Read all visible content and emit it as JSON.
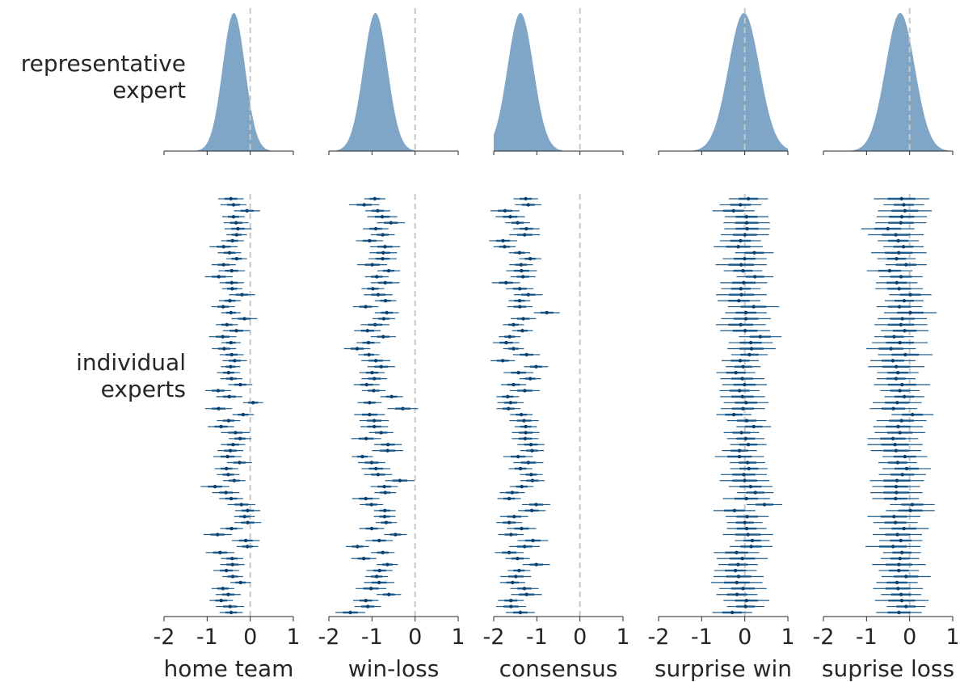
{
  "row_labels": {
    "top": [
      "representative",
      "expert"
    ],
    "bottom": [
      "individual",
      "experts"
    ]
  },
  "colors": {
    "density_fill": "#7fa6c6",
    "interval_line": "#1a5a8c",
    "interval_point": "#0c3f6b",
    "zero_line": "#c8c8c8",
    "axis": "#262626"
  },
  "chart_data": [
    {
      "type": "area",
      "xlabel": "home team",
      "xlim": [
        -2,
        1
      ],
      "xticks": [
        "-2",
        "-1",
        "0",
        "1"
      ],
      "reference_line": 0,
      "density": {
        "mean": -0.38,
        "sd": 0.26,
        "skew": 0.0
      },
      "experts": {
        "count": 70,
        "center": -0.38,
        "spread": 0.22,
        "half_width": 0.28
      }
    },
    {
      "type": "area",
      "xlabel": "win-loss",
      "xlim": [
        -2,
        1
      ],
      "xticks": [
        "-2",
        "-1",
        "0",
        "1"
      ],
      "reference_line": 0,
      "density": {
        "mean": -0.92,
        "sd": 0.28,
        "skew": 0.0
      },
      "experts": {
        "count": 70,
        "center": -0.92,
        "spread": 0.24,
        "half_width": 0.3
      }
    },
    {
      "type": "area",
      "xlabel": "consensus",
      "xlim": [
        -2,
        1
      ],
      "xticks": [
        "-2",
        "-1",
        "0",
        "1"
      ],
      "reference_line": 0,
      "density": {
        "mean": -1.38,
        "sd": 0.3,
        "skew": 0.0
      },
      "experts": {
        "count": 70,
        "center": -1.38,
        "spread": 0.24,
        "half_width": 0.3
      }
    },
    {
      "type": "area",
      "xlabel": "surprise win",
      "xlim": [
        -2,
        1
      ],
      "xticks": [
        "-2",
        "-1",
        "0",
        "1"
      ],
      "reference_line": 0,
      "density": {
        "mean": -0.02,
        "sd": 0.36,
        "skew": 0.0
      },
      "experts": {
        "count": 70,
        "center": 0.0,
        "spread": 0.12,
        "half_width": 0.5
      }
    },
    {
      "type": "area",
      "xlabel": "suprise loss",
      "xlim": [
        -2,
        1
      ],
      "xticks": [
        "-2",
        "-1",
        "0",
        "1"
      ],
      "reference_line": 0,
      "density": {
        "mean": -0.22,
        "sd": 0.34,
        "skew": 0.0
      },
      "experts": {
        "count": 70,
        "center": -0.2,
        "spread": 0.13,
        "half_width": 0.55
      }
    }
  ]
}
